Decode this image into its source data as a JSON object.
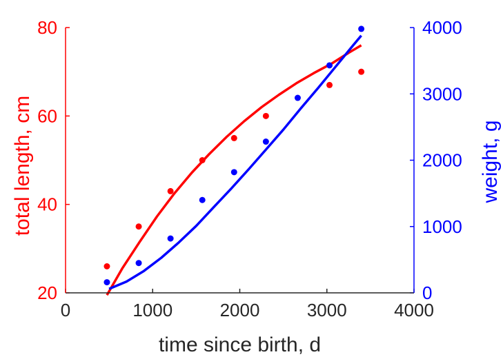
{
  "chart_data": {
    "type": "scatter",
    "xlabel": "time since birth, d",
    "xlim": [
      0,
      4000
    ],
    "x_ticks": [
      "0",
      "1000",
      "2000",
      "3000",
      "4000"
    ],
    "left_axis": {
      "ylabel": "total length, cm",
      "color": "#ff0000",
      "ylim": [
        20,
        80
      ],
      "ticks": [
        "20",
        "40",
        "60",
        "80"
      ],
      "tick_values": [
        20,
        40,
        60,
        80
      ]
    },
    "right_axis": {
      "ylabel": "weight, g",
      "color": "#0000ff",
      "ylim": [
        0,
        4000
      ],
      "ticks": [
        "0",
        "1000",
        "2000",
        "3000",
        "4000"
      ],
      "tick_values": [
        0,
        1000,
        2000,
        3000,
        4000
      ]
    },
    "series": [
      {
        "axis": "left",
        "color": "#ff0000",
        "points": {
          "x": [
            475,
            840,
            1205,
            1570,
            1935,
            2300,
            3030,
            3395
          ],
          "y": [
            26,
            35,
            43,
            50,
            55,
            60,
            67,
            70
          ]
        },
        "fit_curve": {
          "x": [
            475,
            650,
            850,
            1050,
            1250,
            1450,
            1650,
            1850,
            2050,
            2250,
            2450,
            2650,
            2850,
            3050,
            3250,
            3395
          ],
          "y": [
            19.5,
            25.5,
            31.5,
            37.3,
            42.5,
            47.2,
            51.4,
            55.3,
            58.8,
            62.0,
            64.8,
            67.4,
            69.7,
            71.8,
            74.3,
            76.0
          ]
        }
      },
      {
        "axis": "right",
        "color": "#0000ff",
        "points": {
          "x": [
            475,
            840,
            1205,
            1570,
            1935,
            2300,
            2665,
            3030,
            3395
          ],
          "y": [
            160,
            450,
            820,
            1400,
            1820,
            2280,
            2940,
            3430,
            3980
          ]
        },
        "fit_curve": {
          "x": [
            500,
            700,
            900,
            1100,
            1300,
            1500,
            1700,
            1900,
            2100,
            2300,
            2500,
            2700,
            2900,
            3100,
            3300,
            3395
          ],
          "y": [
            60,
            170,
            330,
            530,
            760,
            1010,
            1290,
            1570,
            1860,
            2160,
            2460,
            2780,
            3090,
            3410,
            3730,
            3880
          ]
        }
      }
    ]
  }
}
